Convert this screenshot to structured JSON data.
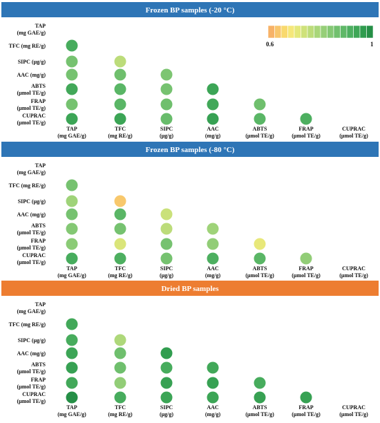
{
  "chart_data": {
    "type": "heatmap",
    "colorscale": {
      "min": 0.6,
      "max": 1,
      "min_label": "0.6",
      "max_label": "1",
      "colors": [
        "#f7b267",
        "#f8c66c",
        "#f9d96e",
        "#f5e77a",
        "#e4e87a",
        "#cfe27a",
        "#bcdc7a",
        "#a9d67a",
        "#96cf78",
        "#84c874",
        "#71c06e",
        "#5fb868",
        "#4daf60",
        "#3ea657",
        "#2f9c4e",
        "#258f46"
      ]
    },
    "variables": [
      [
        "TAP",
        "(mg GAE/g)"
      ],
      [
        "TFC (mg RE/g)"
      ],
      [
        "SIPC (μg/g)"
      ],
      [
        "AAC (mg/g)"
      ],
      [
        "ABTS",
        "(μmol TE/g)"
      ],
      [
        "FRAP",
        "(μmol TE/g)"
      ],
      [
        "CUPRAC",
        "(μmol TE/g)"
      ]
    ],
    "columns": [
      [
        "TAP",
        "(mg GAE/g)"
      ],
      [
        "TFC",
        "(mg RE/g)"
      ],
      [
        "SIPC",
        "(μg/g)"
      ],
      [
        "AAC",
        "(mg/g)"
      ],
      [
        "ABTS",
        "(μmol TE/g)"
      ],
      [
        "FRAP",
        "(μmol TE/g)"
      ],
      [
        "CUPRAC",
        "(μmol TE/g)"
      ]
    ],
    "panels": [
      {
        "title": "Frozen BP samples (-20 °C)",
        "banner_color": "#2e75b6",
        "values": [
          [],
          [
            0.93
          ],
          [
            0.86,
            0.76
          ],
          [
            0.86,
            0.87,
            0.85
          ],
          [
            0.94,
            0.9,
            0.86,
            0.95
          ],
          [
            0.86,
            0.9,
            0.87,
            0.94,
            0.87
          ],
          [
            0.95,
            0.95,
            0.88,
            0.96,
            0.9,
            0.92
          ]
        ]
      },
      {
        "title": "Frozen BP samples (-80 °C)",
        "banner_color": "#2e75b6",
        "values": [
          [],
          [
            0.86
          ],
          [
            0.8,
            0.63
          ],
          [
            0.86,
            0.9,
            0.74
          ],
          [
            0.84,
            0.86,
            0.76,
            0.8
          ],
          [
            0.83,
            0.72,
            0.86,
            0.82,
            0.7
          ],
          [
            0.93,
            0.92,
            0.86,
            0.92,
            0.9,
            0.82
          ]
        ]
      },
      {
        "title": "Dried BP samples",
        "banner_color": "#ed7d31",
        "values": [
          [],
          [
            0.94
          ],
          [
            0.93,
            0.78
          ],
          [
            0.95,
            0.87,
            0.97
          ],
          [
            0.96,
            0.87,
            0.93,
            0.94
          ],
          [
            0.94,
            0.82,
            0.96,
            0.96,
            0.93
          ],
          [
            1.0,
            0.93,
            0.95,
            0.95,
            0.96,
            0.96
          ]
        ]
      }
    ]
  }
}
